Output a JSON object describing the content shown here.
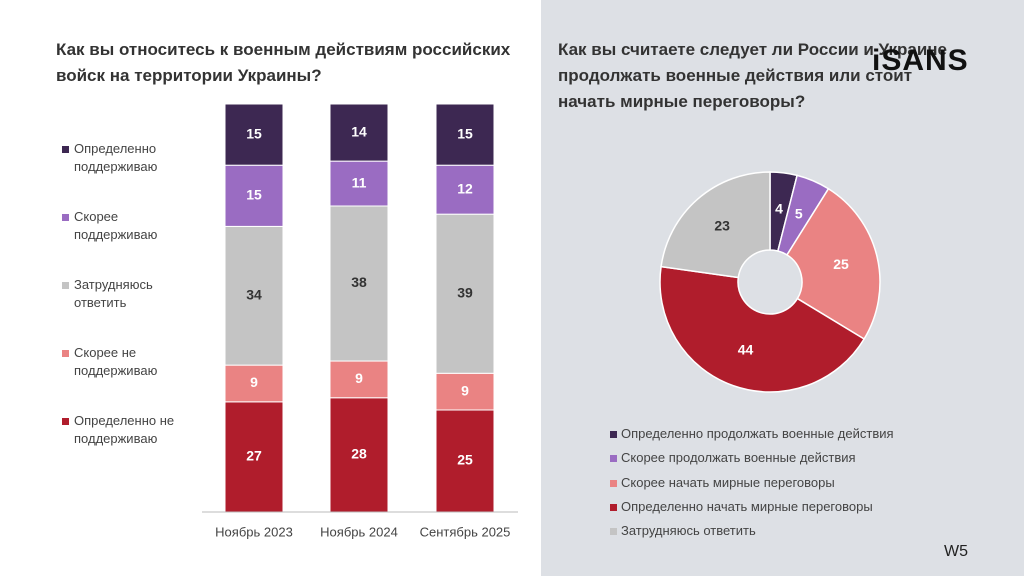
{
  "logo": "iSANS",
  "slide_label": "W5",
  "chart_data": [
    {
      "type": "stacked_bar",
      "title": "Как вы относитесь к военным действиям российских войск на территории Украины?",
      "categories": [
        "Ноябрь 2023",
        "Ноябрь 2024",
        "Сентябрь 2025"
      ],
      "ylim": [
        0,
        100
      ],
      "series": [
        {
          "name": "Определенно поддерживаю",
          "color": "#3d2852",
          "values": [
            15,
            14,
            15
          ]
        },
        {
          "name": "Скорее поддерживаю",
          "color": "#9a6cc2",
          "values": [
            15,
            11,
            12
          ]
        },
        {
          "name": "Затрудняюсь ответить",
          "color": "#c4c4c4",
          "values": [
            34,
            38,
            39
          ]
        },
        {
          "name": "Скорее не поддерживаю",
          "color": "#ea8383",
          "values": [
            9,
            9,
            9
          ]
        },
        {
          "name": "Определенно не поддерживаю",
          "color": "#b01d2c",
          "values": [
            27,
            28,
            25
          ]
        }
      ]
    },
    {
      "type": "donut",
      "title": "Как вы считаете следует ли России и Украине продолжать военные действия или стоит начать мирные переговоры?",
      "categories": [
        "Определенно продолжать военные действия",
        "Скорее продолжать военные действия",
        "Скорее начать мирные переговоры",
        "Определенно начать мирные переговоры",
        "Затрудняюсь ответить"
      ],
      "values": [
        4,
        5,
        25,
        44,
        23
      ],
      "colors": [
        "#3d2852",
        "#9a6cc2",
        "#ea8383",
        "#b01d2c",
        "#c4c4c4"
      ]
    }
  ]
}
